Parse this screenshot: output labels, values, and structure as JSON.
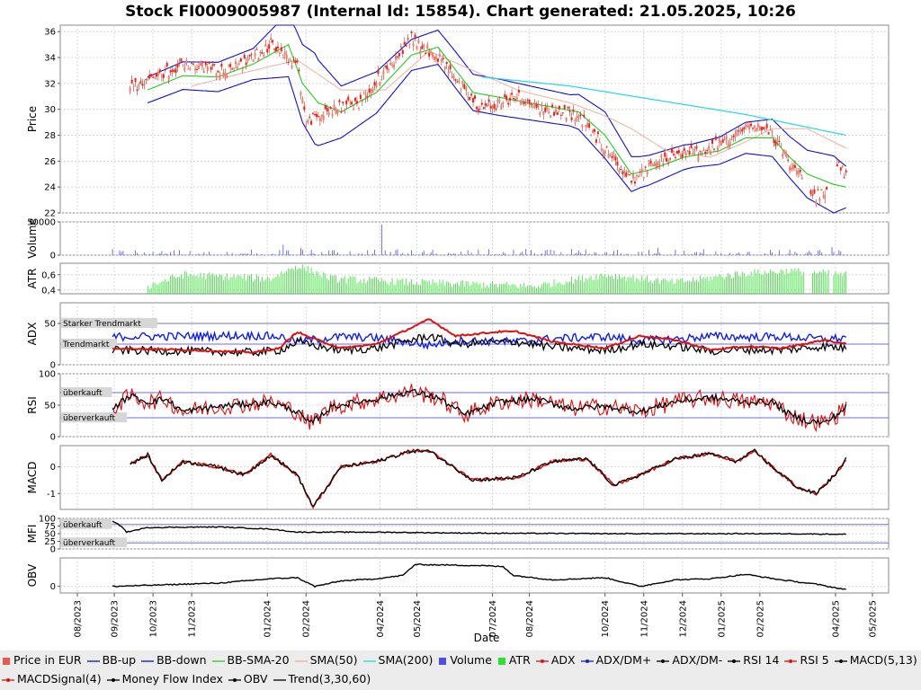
{
  "title": "Stock FI0009005987 (Internal Id: 15854). Chart generated: 21.05.2025, 10:26",
  "colors": {
    "price_up": "#e8231a",
    "price_down": "#e8231a",
    "bb": "#1010d0",
    "bb_sma": "#22cc22",
    "sma50": "#f0b0a0",
    "sma200": "#22d8e8",
    "volume": "#5050e0",
    "atr": "#33dd33",
    "adx": "#e01010",
    "dm_plus": "#1020e0",
    "dm_minus": "#000000",
    "rsi14": "#000000",
    "rsi5": "#e01010",
    "macd": "#000000",
    "macd_signal": "#e01010",
    "mfi": "#000000",
    "obv": "#000000",
    "trend": "#000000",
    "threshold": "#7070d0",
    "grid": "#d8d8d8"
  },
  "chart_data": {
    "type": "line",
    "x_axis": {
      "label": "Date",
      "ticks": [
        "08/2023",
        "09/2023",
        "10/2023",
        "11/2023",
        "01/2024",
        "02/2024",
        "04/2024",
        "05/2024",
        "07/2024",
        "08/2024",
        "10/2024",
        "11/2024",
        "12/2024",
        "01/2025",
        "02/2025",
        "04/2025",
        "05/2025"
      ],
      "tick_index": [
        0,
        21,
        43,
        65,
        108,
        130,
        172,
        193,
        236,
        257,
        300,
        322,
        344,
        366,
        388,
        431,
        452
      ]
    },
    "n_days": 452,
    "panels": {
      "price": {
        "ylabel": "Price",
        "ylim": [
          22,
          36.5
        ],
        "ticks": [
          22,
          24,
          26,
          28,
          30,
          32,
          34,
          36
        ],
        "keys": [
          [
            30,
            31.5
          ],
          [
            45,
            32.5
          ],
          [
            60,
            33.5
          ],
          [
            85,
            33
          ],
          [
            100,
            34
          ],
          [
            110,
            35
          ],
          [
            125,
            33.5
          ],
          [
            130,
            29
          ],
          [
            145,
            30
          ],
          [
            160,
            30.5
          ],
          [
            175,
            33
          ],
          [
            190,
            35.5
          ],
          [
            205,
            34
          ],
          [
            230,
            30
          ],
          [
            250,
            31
          ],
          [
            265,
            30
          ],
          [
            285,
            29.5
          ],
          [
            300,
            27
          ],
          [
            315,
            24.5
          ],
          [
            330,
            26
          ],
          [
            345,
            26.5
          ],
          [
            360,
            27
          ],
          [
            375,
            28
          ],
          [
            385,
            29
          ],
          [
            395,
            28
          ],
          [
            405,
            26
          ],
          [
            412,
            24.5
          ],
          [
            418,
            23.2
          ],
          [
            425,
            23.5
          ],
          [
            432,
            26
          ],
          [
            437,
            24.8
          ]
        ],
        "sma50_keys": [
          [
            65,
            31.8
          ],
          [
            100,
            33
          ],
          [
            125,
            33.8
          ],
          [
            150,
            31.5
          ],
          [
            175,
            31.5
          ],
          [
            200,
            34.5
          ],
          [
            225,
            33
          ],
          [
            250,
            31.5
          ],
          [
            280,
            30.5
          ],
          [
            300,
            29.5
          ],
          [
            315,
            28.5
          ],
          [
            335,
            26.8
          ],
          [
            360,
            26.3
          ],
          [
            380,
            27.5
          ],
          [
            395,
            28.5
          ],
          [
            415,
            28.5
          ],
          [
            437,
            27
          ]
        ],
        "sma200_keys": [
          [
            230,
            32.5
          ],
          [
            280,
            31.8
          ],
          [
            330,
            30.7
          ],
          [
            380,
            29.6
          ],
          [
            437,
            28
          ]
        ],
        "sma20_keys": [
          [
            40,
            31.5
          ],
          [
            60,
            32.6
          ],
          [
            80,
            32.5
          ],
          [
            100,
            33.5
          ],
          [
            120,
            35
          ],
          [
            128,
            32
          ],
          [
            137,
            30.5
          ],
          [
            150,
            29.8
          ],
          [
            170,
            31.3
          ],
          [
            190,
            34.2
          ],
          [
            205,
            34.8
          ],
          [
            225,
            31.3
          ],
          [
            245,
            30.8
          ],
          [
            265,
            30.3
          ],
          [
            285,
            29.8
          ],
          [
            300,
            28
          ],
          [
            315,
            25
          ],
          [
            325,
            25.3
          ],
          [
            345,
            26.3
          ],
          [
            365,
            26.8
          ],
          [
            380,
            27.8
          ],
          [
            395,
            27.8
          ],
          [
            405,
            26.3
          ],
          [
            415,
            25
          ],
          [
            430,
            24.2
          ],
          [
            437,
            24
          ]
        ],
        "bb_half_width_keys": [
          [
            40,
            1.0
          ],
          [
            100,
            1.2
          ],
          [
            125,
            2.8
          ],
          [
            135,
            3.5
          ],
          [
            150,
            2.0
          ],
          [
            190,
            1.2
          ],
          [
            215,
            1.4
          ],
          [
            240,
            1.4
          ],
          [
            280,
            1.2
          ],
          [
            300,
            1.8
          ],
          [
            320,
            1.2
          ],
          [
            350,
            0.9
          ],
          [
            380,
            1.2
          ],
          [
            405,
            1.6
          ],
          [
            430,
            2.2
          ],
          [
            437,
            1.6
          ]
        ]
      },
      "volume": {
        "ylabel": "Volume",
        "ylim": [
          0,
          50000
        ],
        "ticks": [
          0,
          50000
        ]
      },
      "atr": {
        "ylabel": "ATR",
        "ylim": [
          0.35,
          0.75
        ],
        "ticks": [
          0.4,
          0.6
        ],
        "tick_labels": [
          "0,4",
          "0,6"
        ]
      },
      "adx": {
        "ylabel": "ADX",
        "ylim": [
          0,
          75
        ],
        "ticks": [
          0,
          50
        ],
        "thresholds": [
          {
            "value": 50,
            "label": "Starker Trendmarkt"
          },
          {
            "value": 25,
            "label": "Trendmarkt"
          }
        ],
        "adx_keys": [
          [
            20,
            20
          ],
          [
            60,
            18
          ],
          [
            100,
            15
          ],
          [
            115,
            20
          ],
          [
            125,
            40
          ],
          [
            130,
            35
          ],
          [
            150,
            20
          ],
          [
            170,
            25
          ],
          [
            190,
            45
          ],
          [
            200,
            55
          ],
          [
            215,
            35
          ],
          [
            240,
            40
          ],
          [
            250,
            40
          ],
          [
            270,
            28
          ],
          [
            300,
            20
          ],
          [
            320,
            35
          ],
          [
            340,
            30
          ],
          [
            360,
            18
          ],
          [
            380,
            22
          ],
          [
            400,
            20
          ],
          [
            425,
            30
          ],
          [
            437,
            25
          ]
        ]
      },
      "rsi": {
        "ylabel": "RSI",
        "ylim": [
          0,
          100
        ],
        "ticks": [
          0,
          50,
          100
        ],
        "thresholds": [
          {
            "value": 70,
            "label": "überkauft"
          },
          {
            "value": 30,
            "label": "überverkauft"
          }
        ],
        "rsi14_keys": [
          [
            20,
            45
          ],
          [
            30,
            65
          ],
          [
            40,
            55
          ],
          [
            50,
            60
          ],
          [
            60,
            40
          ],
          [
            80,
            48
          ],
          [
            110,
            55
          ],
          [
            125,
            40
          ],
          [
            132,
            20
          ],
          [
            145,
            48
          ],
          [
            170,
            60
          ],
          [
            190,
            72
          ],
          [
            205,
            62
          ],
          [
            220,
            35
          ],
          [
            240,
            55
          ],
          [
            260,
            60
          ],
          [
            280,
            45
          ],
          [
            300,
            48
          ],
          [
            320,
            40
          ],
          [
            340,
            56
          ],
          [
            360,
            62
          ],
          [
            380,
            55
          ],
          [
            395,
            55
          ],
          [
            405,
            35
          ],
          [
            415,
            25
          ],
          [
            425,
            22
          ],
          [
            432,
            35
          ],
          [
            437,
            48
          ]
        ]
      },
      "macd": {
        "ylabel": "MACD",
        "ylim": [
          -1.6,
          0.8
        ],
        "ticks": [
          -1,
          0
        ],
        "macd_keys": [
          [
            30,
            0.1
          ],
          [
            40,
            0.45
          ],
          [
            48,
            -0.5
          ],
          [
            60,
            0.2
          ],
          [
            80,
            0.0
          ],
          [
            95,
            -0.3
          ],
          [
            110,
            0.45
          ],
          [
            125,
            -0.3
          ],
          [
            134,
            -1.5
          ],
          [
            150,
            0.0
          ],
          [
            170,
            0.2
          ],
          [
            190,
            0.6
          ],
          [
            200,
            0.6
          ],
          [
            225,
            -0.5
          ],
          [
            250,
            -0.4
          ],
          [
            270,
            0.2
          ],
          [
            290,
            0.3
          ],
          [
            305,
            -0.7
          ],
          [
            320,
            -0.3
          ],
          [
            340,
            0.3
          ],
          [
            360,
            0.5
          ],
          [
            375,
            0.2
          ],
          [
            385,
            0.6
          ],
          [
            395,
            0.0
          ],
          [
            410,
            -0.8
          ],
          [
            420,
            -1.0
          ],
          [
            432,
            -0.2
          ],
          [
            437,
            0.3
          ]
        ]
      },
      "mfi": {
        "ylabel": "MFI",
        "ylim": [
          0,
          100
        ],
        "ticks": [
          0,
          25,
          50,
          75,
          100
        ],
        "thresholds": [
          {
            "value": 80,
            "label": "überkauft"
          },
          {
            "value": 20,
            "label": "überverkauft"
          }
        ],
        "mfi_keys": [
          [
            20,
            90
          ],
          [
            25,
            75
          ],
          [
            28,
            55
          ],
          [
            40,
            70
          ],
          [
            80,
            72
          ],
          [
            110,
            65
          ],
          [
            125,
            55
          ],
          [
            170,
            55
          ],
          [
            220,
            52
          ],
          [
            300,
            50
          ],
          [
            400,
            50
          ],
          [
            437,
            48
          ]
        ]
      },
      "obv": {
        "ylabel": "OBV",
        "ticks": [
          0
        ],
        "ylim": [
          -0.3,
          1.3
        ],
        "obv_keys": [
          [
            20,
            0.0
          ],
          [
            40,
            0.05
          ],
          [
            80,
            0.15
          ],
          [
            110,
            0.35
          ],
          [
            125,
            0.4
          ],
          [
            135,
            0.0
          ],
          [
            150,
            0.25
          ],
          [
            170,
            0.35
          ],
          [
            185,
            0.5
          ],
          [
            192,
            1.0
          ],
          [
            230,
            0.95
          ],
          [
            242,
            0.9
          ],
          [
            248,
            0.5
          ],
          [
            270,
            0.3
          ],
          [
            300,
            0.4
          ],
          [
            320,
            0.0
          ],
          [
            340,
            0.3
          ],
          [
            360,
            0.35
          ],
          [
            380,
            0.55
          ],
          [
            400,
            0.3
          ],
          [
            420,
            0.1
          ],
          [
            437,
            -0.15
          ]
        ]
      }
    }
  },
  "legend": [
    {
      "label": "Price in EUR",
      "kind": "box",
      "color": "#e85a50"
    },
    {
      "label": "BB-up",
      "kind": "line",
      "color": "#1010d0"
    },
    {
      "label": "BB-down",
      "kind": "line",
      "color": "#1010d0"
    },
    {
      "label": "BB-SMA-20",
      "kind": "line",
      "color": "#22cc22"
    },
    {
      "label": "SMA(50)",
      "kind": "line",
      "color": "#f0b0a0"
    },
    {
      "label": "SMA(200)",
      "kind": "line",
      "color": "#22d8e8"
    },
    {
      "label": "Volume",
      "kind": "box",
      "color": "#5050e0"
    },
    {
      "label": "ATR",
      "kind": "box",
      "color": "#33dd33"
    },
    {
      "label": "ADX",
      "kind": "dotline",
      "color": "#e01010"
    },
    {
      "label": "ADX/DM+",
      "kind": "dotline",
      "color": "#1020e0"
    },
    {
      "label": "ADX/DM-",
      "kind": "dotline",
      "color": "#000000"
    },
    {
      "label": "RSI 14",
      "kind": "dotline",
      "color": "#000000"
    },
    {
      "label": "RSI 5",
      "kind": "dotline",
      "color": "#e01010"
    },
    {
      "label": "MACD(5,13)",
      "kind": "dotline",
      "color": "#000000"
    },
    {
      "label": "MACDSignal(4)",
      "kind": "dotline",
      "color": "#e01010"
    },
    {
      "label": "Money Flow Index",
      "kind": "dotline",
      "color": "#000000"
    },
    {
      "label": "OBV",
      "kind": "dotline",
      "color": "#000000"
    },
    {
      "label": "Trend(3,30,60)",
      "kind": "line",
      "color": "#000000"
    }
  ]
}
